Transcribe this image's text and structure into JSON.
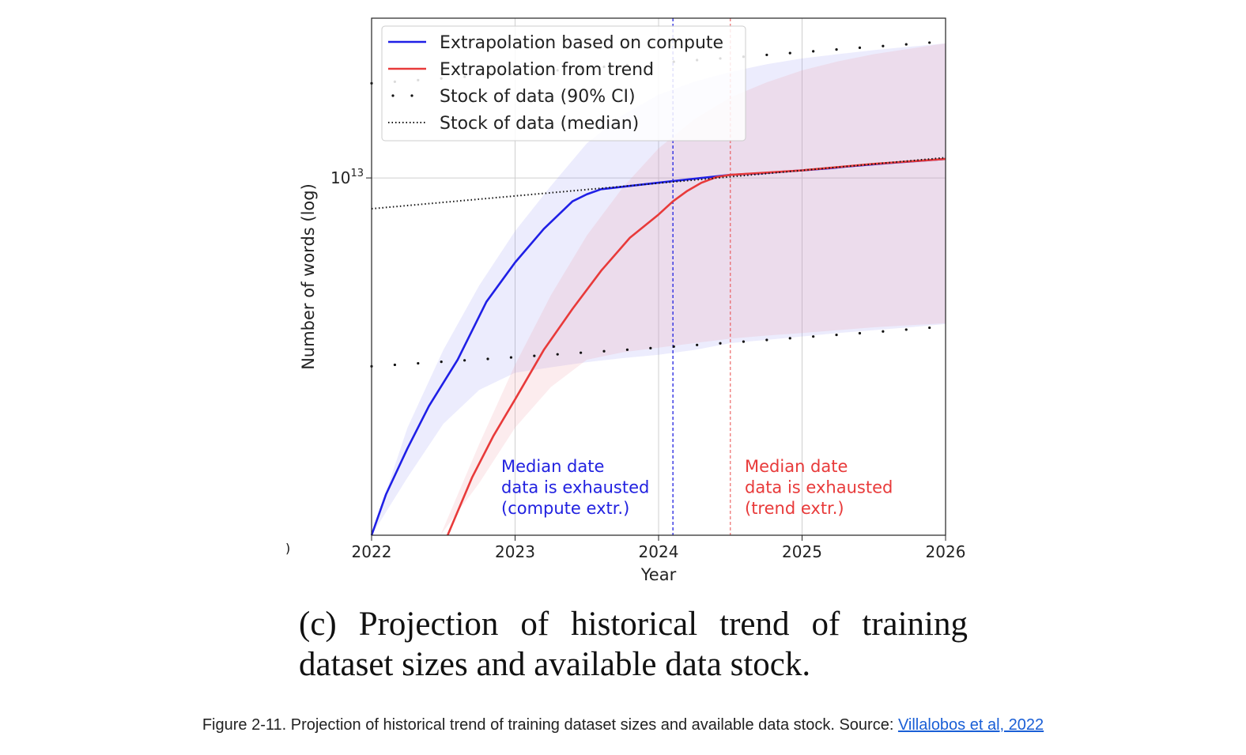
{
  "chart_data": {
    "type": "line",
    "title": "",
    "xlabel": "Year",
    "ylabel": "Number of words (log)",
    "xlim": [
      2022,
      2026
    ],
    "x_ticks": [
      "2022",
      "2023",
      "2024",
      "2025",
      "2026"
    ],
    "y_scale": "log",
    "ylim": [
      1000000000000.0,
      28000000000000.0
    ],
    "y_tick_values": [
      10000000000000.0
    ],
    "y_tick_label_base": "10",
    "y_tick_label_exp": "13",
    "grid": true,
    "legend_position": "top-left",
    "series": [
      {
        "name": "Extrapolation based on compute",
        "color": "#1f1fe6",
        "x": [
          2022.0,
          2022.1,
          2022.25,
          2022.4,
          2022.6,
          2022.8,
          2023.0,
          2023.2,
          2023.4,
          2023.5,
          2023.6,
          2023.8,
          2024.0,
          2024.1,
          2024.3,
          2024.5,
          2024.7,
          2025.0,
          2025.2,
          2025.3,
          2025.6,
          2026.0
        ],
        "y": [
          1000000000000.0,
          1300000000000.0,
          1750000000000.0,
          2300000000000.0,
          3100000000000.0,
          4500000000000.0,
          5800000000000.0,
          7200000000000.0,
          8600000000000.0,
          9000000000000.0,
          9300000000000.0,
          9500000000000.0,
          9700000000000.0,
          9800000000000.0,
          10000000000000.0,
          10200000000000.0,
          10300000000000.0,
          10500000000000.0,
          10650000000000.0,
          10750000000000.0,
          11000000000000.0,
          11300000000000.0
        ]
      },
      {
        "name": "Extrapolation from trend",
        "color": "#e83a3a",
        "x": [
          2022.53,
          2022.7,
          2022.85,
          2023.0,
          2023.2,
          2023.4,
          2023.6,
          2023.8,
          2024.0,
          2024.1,
          2024.2,
          2024.3,
          2024.4,
          2024.5,
          2025.0,
          2025.5,
          2026.0
        ],
        "y": [
          1000000000000.0,
          1450000000000.0,
          1900000000000.0,
          2400000000000.0,
          3300000000000.0,
          4300000000000.0,
          5500000000000.0,
          6800000000000.0,
          7900000000000.0,
          8600000000000.0,
          9200000000000.0,
          9700000000000.0,
          10050000000000.0,
          10200000000000.0,
          10500000000000.0,
          10950000000000.0,
          11300000000000.0
        ]
      },
      {
        "name": "Stock of data (90% CI)",
        "color": "#111111",
        "style": "sparse-dots",
        "x": [
          2022.0,
          2022.5,
          2023.0,
          2023.5,
          2024.0,
          2024.5,
          2025.0,
          2025.5,
          2026.0
        ],
        "y_low": [
          2970000000000.0,
          3060000000000.0,
          3150000000000.0,
          3250000000000.0,
          3350000000000.0,
          3460000000000.0,
          3580000000000.0,
          3700000000000.0,
          3840000000000.0
        ],
        "y_high": [
          18400000000000.0,
          19000000000000.0,
          19600000000000.0,
          20300000000000.0,
          21000000000000.0,
          21700000000000.0,
          22500000000000.0,
          23300000000000.0,
          24100000000000.0
        ]
      },
      {
        "name": "Stock of data (median)",
        "color": "#111111",
        "style": "dotted",
        "x": [
          2022.0,
          2026.0
        ],
        "y": [
          8200000000000.0,
          11400000000000.0
        ]
      }
    ],
    "bands": [
      {
        "for": "Extrapolation based on compute",
        "color": "#8a8af0",
        "opacity": 0.16,
        "x": [
          2022.0,
          2022.25,
          2022.5,
          2022.75,
          2023.0,
          2023.25,
          2023.5,
          2023.75,
          2024.0,
          2024.25,
          2024.5,
          2024.75,
          2025.0,
          2025.25,
          2025.5,
          2025.75,
          2026.0
        ],
        "y_low": [
          1000000000000.0,
          1450000000000.0,
          2050000000000.0,
          2550000000000.0,
          2850000000000.0,
          2950000000000.0,
          3050000000000.0,
          3130000000000.0,
          3200000000000.0,
          3300000000000.0,
          3450000000000.0,
          3520000000000.0,
          3600000000000.0,
          3680000000000.0,
          3750000000000.0,
          3820000000000.0,
          3900000000000.0
        ],
        "y_high": [
          1000000000000.0,
          2000000000000.0,
          3300000000000.0,
          5000000000000.0,
          7100000000000.0,
          9500000000000.0,
          12500000000000.0,
          15000000000000.0,
          17100000000000.0,
          18600000000000.0,
          19800000000000.0,
          20800000000000.0,
          21600000000000.0,
          22200000000000.0,
          22800000000000.0,
          23300000000000.0,
          23800000000000.0
        ]
      },
      {
        "for": "Extrapolation from trend",
        "color": "#f0a0a8",
        "opacity": 0.2,
        "x": [
          2022.48,
          2022.75,
          2023.0,
          2023.25,
          2023.5,
          2023.75,
          2024.0,
          2024.25,
          2024.5,
          2024.75,
          2025.0,
          2025.25,
          2025.5,
          2025.75,
          2026.0
        ],
        "y_low": [
          1000000000000.0,
          1400000000000.0,
          2000000000000.0,
          2600000000000.0,
          3100000000000.0,
          3250000000000.0,
          3350000000000.0,
          3450000000000.0,
          3550000000000.0,
          3620000000000.0,
          3680000000000.0,
          3750000000000.0,
          3820000000000.0,
          3870000000000.0,
          3920000000000.0
        ],
        "y_high": [
          1000000000000.0,
          1800000000000.0,
          3000000000000.0,
          4700000000000.0,
          6900000000000.0,
          9400000000000.0,
          12100000000000.0,
          14600000000000.0,
          16800000000000.0,
          18500000000000.0,
          20000000000000.0,
          21200000000000.0,
          22200000000000.0,
          23000000000000.0,
          23800000000000.0
        ]
      }
    ],
    "vlines": [
      {
        "x": 2024.1,
        "color": "#2121e0",
        "style": "dashed",
        "label_lines": [
          "Median date",
          "data is exhausted",
          "(compute extr.)"
        ]
      },
      {
        "x": 2024.5,
        "color": "#e83a3a",
        "style": "dashed",
        "label_lines": [
          "Median date",
          "data is exhausted",
          "(trend extr.)"
        ]
      }
    ]
  },
  "subcaption": "(c) Projection of historical trend of training dataset sizes and available data stock.",
  "figure_caption": {
    "text": "Figure 2-11. Projection of historical trend of training dataset sizes and available data stock. Source: ",
    "link_text": "Villalobos et al, 2022"
  },
  "stray_mark": ")"
}
